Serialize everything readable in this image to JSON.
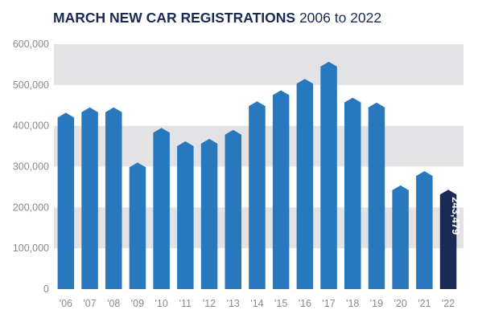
{
  "chart_data": {
    "type": "bar",
    "title": "MARCH NEW CAR REGISTRATIONS",
    "subtitle": "2006 to 2022",
    "xlabel": "",
    "ylabel": "",
    "categories": [
      "'06",
      "'07",
      "'08",
      "'09",
      "'10",
      "'11",
      "'12",
      "'13",
      "'14",
      "'15",
      "'16",
      "'17",
      "'18",
      "'19",
      "'20",
      "'21",
      "'22"
    ],
    "values": [
      432000,
      445000,
      445000,
      310000,
      395000,
      362000,
      368000,
      390000,
      460000,
      487000,
      515000,
      557000,
      469000,
      457000,
      254000,
      289000,
      243479
    ],
    "ylim": [
      0,
      600000
    ],
    "yticks": [
      0,
      100000,
      200000,
      300000,
      400000,
      500000,
      600000
    ],
    "ytick_labels": [
      "0",
      "100,000",
      "200,000",
      "300,000",
      "400,000",
      "500,000",
      "600,000"
    ],
    "annotations": [
      {
        "category": "'22",
        "text": "243,479"
      }
    ],
    "grid": "alternating horizontal bands",
    "legend": "none",
    "colors": {
      "bar": "#2878be",
      "highlight_bar": "#1b2a52",
      "band": "#e3e3e6",
      "axis": "#8a8a8a",
      "title": "#1b2a52"
    }
  }
}
